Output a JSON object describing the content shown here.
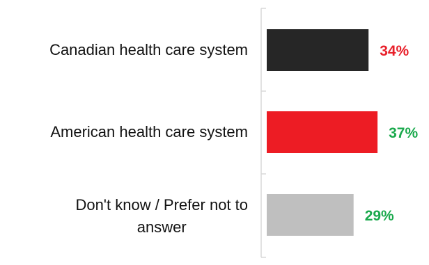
{
  "chart_data": {
    "type": "bar",
    "orientation": "horizontal",
    "categories": [
      "Canadian health care system",
      "American health care system",
      "Don't know / Prefer not to answer"
    ],
    "values": [
      34,
      37,
      29
    ],
    "value_labels": [
      "34%",
      "37%",
      "29%"
    ],
    "title": "",
    "xlabel": "",
    "ylabel": "",
    "xlim": [
      0,
      40
    ],
    "grid": false,
    "legend": "none",
    "bar_colors": [
      "#262626",
      "#ed1c24",
      "#bfbfbf"
    ],
    "label_colors": [
      "#e8202a",
      "#1aa94c",
      "#1aa94c"
    ]
  }
}
